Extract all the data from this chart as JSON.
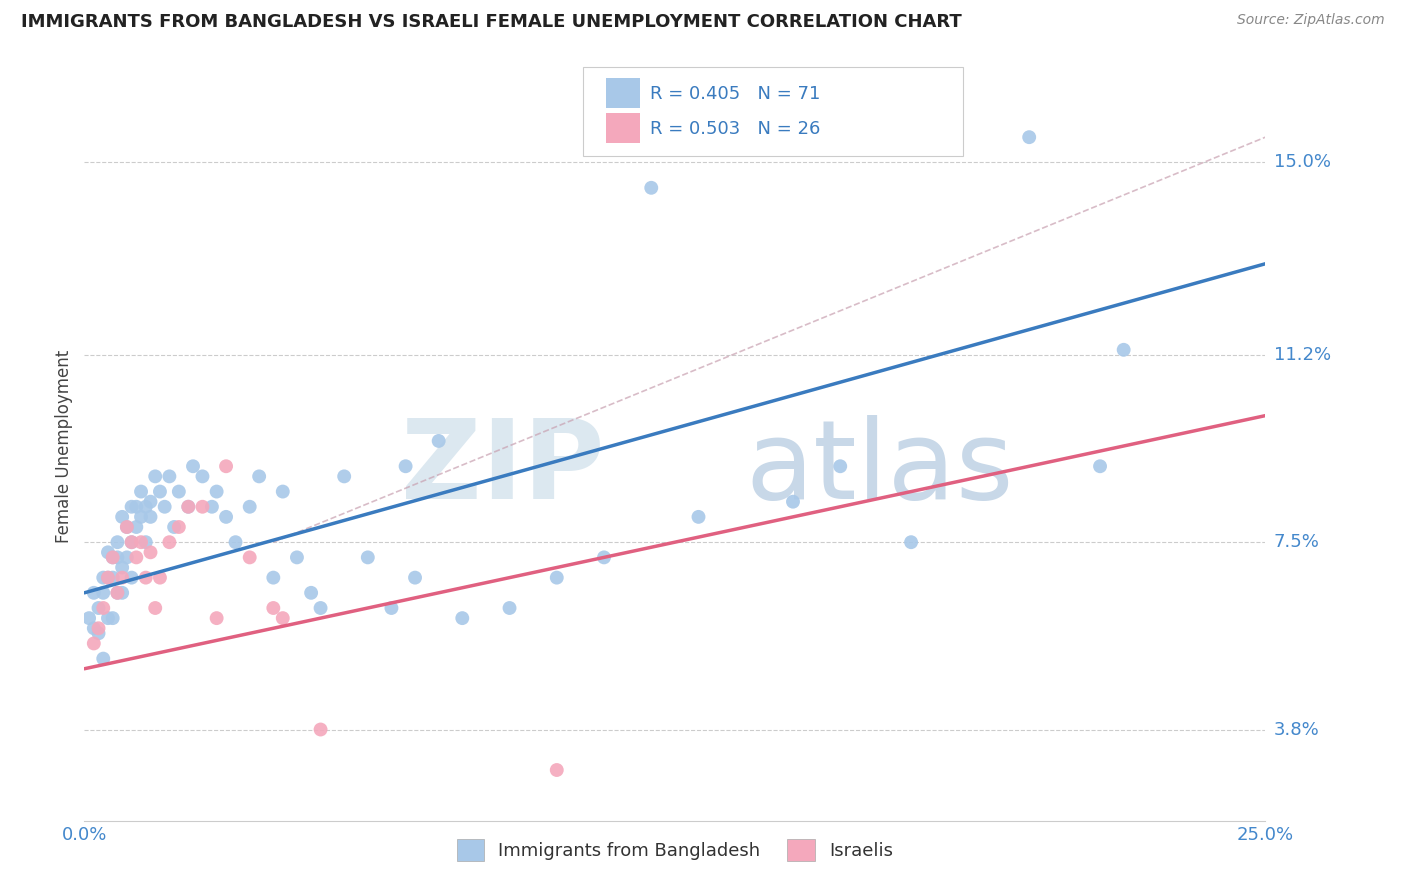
{
  "title": "IMMIGRANTS FROM BANGLADESH VS ISRAELI FEMALE UNEMPLOYMENT CORRELATION CHART",
  "source": "Source: ZipAtlas.com",
  "ylabel": "Female Unemployment",
  "xlim": [
    0.0,
    0.25
  ],
  "ylim": [
    0.02,
    0.168
  ],
  "ytick_values": [
    0.038,
    0.075,
    0.112,
    0.15
  ],
  "ytick_labels": [
    "3.8%",
    "7.5%",
    "11.2%",
    "15.0%"
  ],
  "blue_color": "#a8c8e8",
  "pink_color": "#f4a8bc",
  "trend_blue": "#3a7bbf",
  "trend_pink": "#e06080",
  "trend_gray_color": "#c8a0b0",
  "legend_r_blue": "R = 0.405",
  "legend_n_blue": "N = 71",
  "legend_r_pink": "R = 0.503",
  "legend_n_pink": "N = 26",
  "legend_label_blue": "Immigrants from Bangladesh",
  "legend_label_pink": "Israelis",
  "blue_trend_x0": 0.0,
  "blue_trend_y0": 0.065,
  "blue_trend_x1": 0.25,
  "blue_trend_y1": 0.13,
  "pink_trend_x0": 0.0,
  "pink_trend_y0": 0.05,
  "pink_trend_x1": 0.25,
  "pink_trend_y1": 0.1,
  "gray_trend_x0": 0.04,
  "gray_trend_y0": 0.075,
  "gray_trend_x1": 0.25,
  "gray_trend_y1": 0.155,
  "blue_scatter_x": [
    0.001,
    0.002,
    0.002,
    0.003,
    0.003,
    0.004,
    0.004,
    0.004,
    0.005,
    0.005,
    0.005,
    0.006,
    0.006,
    0.006,
    0.007,
    0.007,
    0.007,
    0.008,
    0.008,
    0.008,
    0.009,
    0.009,
    0.01,
    0.01,
    0.01,
    0.011,
    0.011,
    0.012,
    0.012,
    0.013,
    0.013,
    0.014,
    0.014,
    0.015,
    0.016,
    0.017,
    0.018,
    0.019,
    0.02,
    0.022,
    0.023,
    0.025,
    0.027,
    0.028,
    0.03,
    0.032,
    0.035,
    0.037,
    0.04,
    0.042,
    0.045,
    0.048,
    0.05,
    0.055,
    0.06,
    0.065,
    0.068,
    0.07,
    0.075,
    0.08,
    0.09,
    0.1,
    0.11,
    0.12,
    0.13,
    0.15,
    0.16,
    0.175,
    0.2,
    0.215,
    0.22
  ],
  "blue_scatter_y": [
    0.06,
    0.058,
    0.065,
    0.062,
    0.057,
    0.065,
    0.068,
    0.052,
    0.068,
    0.073,
    0.06,
    0.072,
    0.068,
    0.06,
    0.075,
    0.072,
    0.065,
    0.08,
    0.07,
    0.065,
    0.078,
    0.072,
    0.082,
    0.075,
    0.068,
    0.082,
    0.078,
    0.085,
    0.08,
    0.082,
    0.075,
    0.083,
    0.08,
    0.088,
    0.085,
    0.082,
    0.088,
    0.078,
    0.085,
    0.082,
    0.09,
    0.088,
    0.082,
    0.085,
    0.08,
    0.075,
    0.082,
    0.088,
    0.068,
    0.085,
    0.072,
    0.065,
    0.062,
    0.088,
    0.072,
    0.062,
    0.09,
    0.068,
    0.095,
    0.06,
    0.062,
    0.068,
    0.072,
    0.145,
    0.08,
    0.083,
    0.09,
    0.075,
    0.155,
    0.09,
    0.113
  ],
  "pink_scatter_x": [
    0.002,
    0.003,
    0.004,
    0.005,
    0.006,
    0.007,
    0.008,
    0.009,
    0.01,
    0.011,
    0.012,
    0.013,
    0.014,
    0.015,
    0.016,
    0.018,
    0.02,
    0.022,
    0.025,
    0.028,
    0.03,
    0.035,
    0.04,
    0.042,
    0.05,
    0.1
  ],
  "pink_scatter_y": [
    0.055,
    0.058,
    0.062,
    0.068,
    0.072,
    0.065,
    0.068,
    0.078,
    0.075,
    0.072,
    0.075,
    0.068,
    0.073,
    0.062,
    0.068,
    0.075,
    0.078,
    0.082,
    0.082,
    0.06,
    0.09,
    0.072,
    0.062,
    0.06,
    0.038,
    0.03
  ]
}
